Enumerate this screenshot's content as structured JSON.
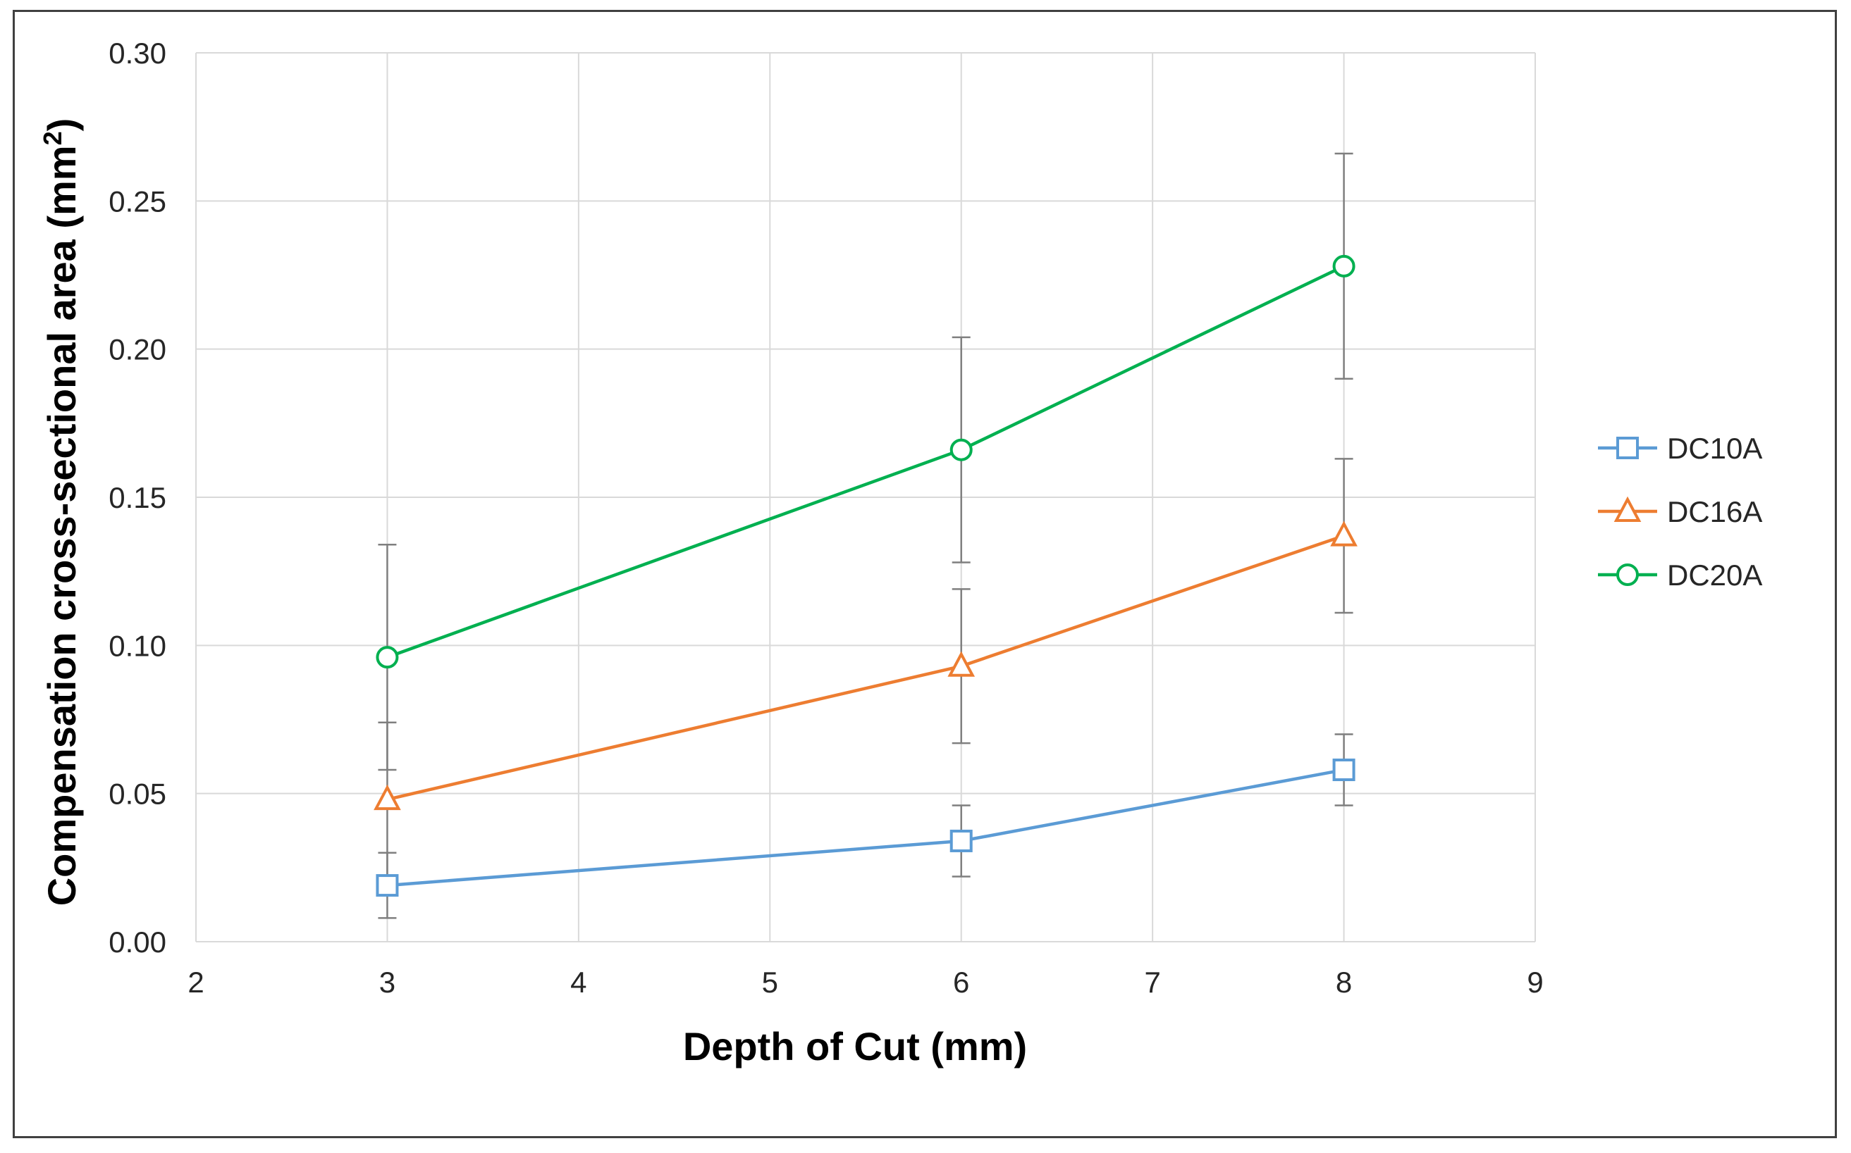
{
  "chart_data": {
    "type": "line",
    "title": "",
    "xlabel": "Depth of Cut (mm)",
    "ylabel": "Compensation cross-sectional area (mm²)",
    "ylabel_main": "Compensation cross-sectional area (mm",
    "ylabel_sup": "2",
    "ylabel_close": ")",
    "xlim": [
      2,
      9
    ],
    "ylim": [
      0,
      0.3
    ],
    "x_ticks": [
      "2",
      "3",
      "4",
      "5",
      "6",
      "7",
      "8",
      "9"
    ],
    "y_ticks": [
      "0.00",
      "0.05",
      "0.10",
      "0.15",
      "0.20",
      "0.25",
      "0.30"
    ],
    "grid": true,
    "legend_position": "right",
    "x": [
      3,
      6,
      8
    ],
    "series": [
      {
        "name": "DC10A",
        "color": "#5b9bd5",
        "marker": "square",
        "values": [
          0.019,
          0.034,
          0.058
        ],
        "err": [
          0.011,
          0.012,
          0.012
        ]
      },
      {
        "name": "DC16A",
        "color": "#ed7d31",
        "marker": "triangle",
        "values": [
          0.048,
          0.093,
          0.137
        ],
        "err": [
          0.026,
          0.026,
          0.026
        ]
      },
      {
        "name": "DC20A",
        "color": "#00b050",
        "marker": "circle",
        "values": [
          0.096,
          0.166,
          0.228
        ],
        "err": [
          0.038,
          0.038,
          0.038
        ]
      }
    ]
  }
}
